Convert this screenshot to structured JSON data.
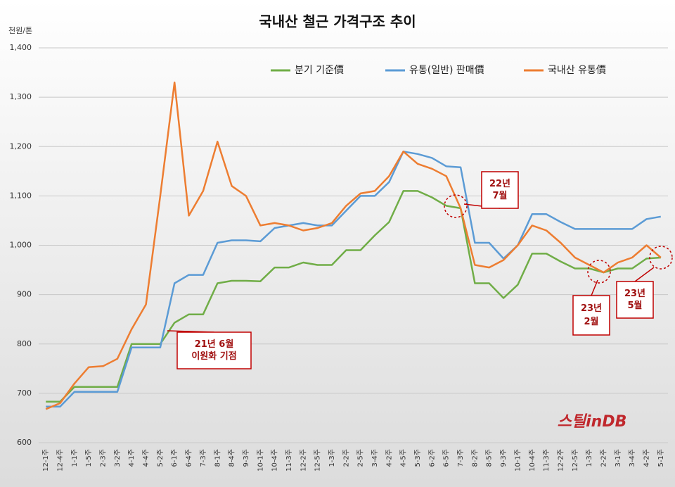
{
  "chart_data": {
    "type": "line",
    "title": "국내산 철근 가격구조 추이",
    "y_unit": "천원/톤",
    "categories": [
      "12-1주",
      "12-4주",
      "1-1주",
      "1-5주",
      "2-3주",
      "3-2주",
      "4-1주",
      "4-4주",
      "5-2주",
      "6-1주",
      "6-4주",
      "7-3주",
      "8-1주",
      "8-4주",
      "9-3주",
      "10-1주",
      "10-4주",
      "11-3주",
      "12-2주",
      "12-5주",
      "1-3주",
      "2-2주",
      "2-5주",
      "3-4주",
      "4-2주",
      "4-5주",
      "5-3주",
      "6-2주",
      "6-5주",
      "7-3주",
      "8-2주",
      "8-5주",
      "9-3주",
      "10-1주",
      "10-4주",
      "11-3주",
      "12-2주",
      "12-5주",
      "1-3주",
      "2-2주",
      "3-1주",
      "3-4주",
      "4-2주",
      "5-1주"
    ],
    "series": [
      {
        "name": "분기 기준價",
        "color": "#70ad47",
        "values": [
          683,
          683,
          713,
          713,
          713,
          713,
          800,
          800,
          800,
          843,
          860,
          860,
          923,
          928,
          928,
          927,
          955,
          955,
          965,
          960,
          960,
          990,
          990,
          1020,
          1047,
          1110,
          1110,
          1097,
          1080,
          1075,
          923,
          923,
          893,
          920,
          983,
          983,
          967,
          953,
          953,
          945,
          953,
          953,
          973,
          975
        ]
      },
      {
        "name": "유통(일반) 판매價",
        "color": "#5b9bd5",
        "values": [
          673,
          673,
          703,
          703,
          703,
          703,
          793,
          793,
          793,
          923,
          940,
          940,
          1005,
          1010,
          1010,
          1008,
          1035,
          1040,
          1045,
          1040,
          1040,
          1070,
          1100,
          1100,
          1128,
          1190,
          1185,
          1177,
          1160,
          1158,
          1005,
          1005,
          973,
          1000,
          1063,
          1063,
          1047,
          1033,
          1033,
          1033,
          1033,
          1033,
          1053,
          1058
        ]
      },
      {
        "name": "국내산 유통價",
        "color": "#ed7d31",
        "values": [
          668,
          680,
          720,
          753,
          755,
          770,
          830,
          880,
          1100,
          1330,
          1060,
          1110,
          1210,
          1120,
          1100,
          1040,
          1045,
          1040,
          1030,
          1035,
          1045,
          1080,
          1105,
          1110,
          1140,
          1190,
          1165,
          1155,
          1140,
          1075,
          960,
          955,
          970,
          1000,
          1040,
          1030,
          1005,
          975,
          960,
          945,
          965,
          975,
          1000,
          975
        ]
      }
    ],
    "ylim": [
      600,
      1400
    ],
    "yticks": [
      600,
      700,
      800,
      900,
      {
        "value": 1000,
        "label": "1,000"
      },
      {
        "value": 1100,
        "label": "1,100"
      },
      {
        "value": 1200,
        "label": "1,200"
      },
      {
        "value": 1300,
        "label": "1,300"
      },
      {
        "value": 1400,
        "label": "1,400"
      }
    ],
    "grid": true,
    "legend": "top",
    "annotations": [
      {
        "lines": [
          "21년 6월",
          "이원화 기점"
        ]
      },
      {
        "lines": [
          "22년",
          "7월"
        ]
      },
      {
        "lines": [
          "23년",
          "2월"
        ]
      },
      {
        "lines": [
          "23년",
          "5월"
        ]
      }
    ],
    "logo": "스틸inDB"
  }
}
